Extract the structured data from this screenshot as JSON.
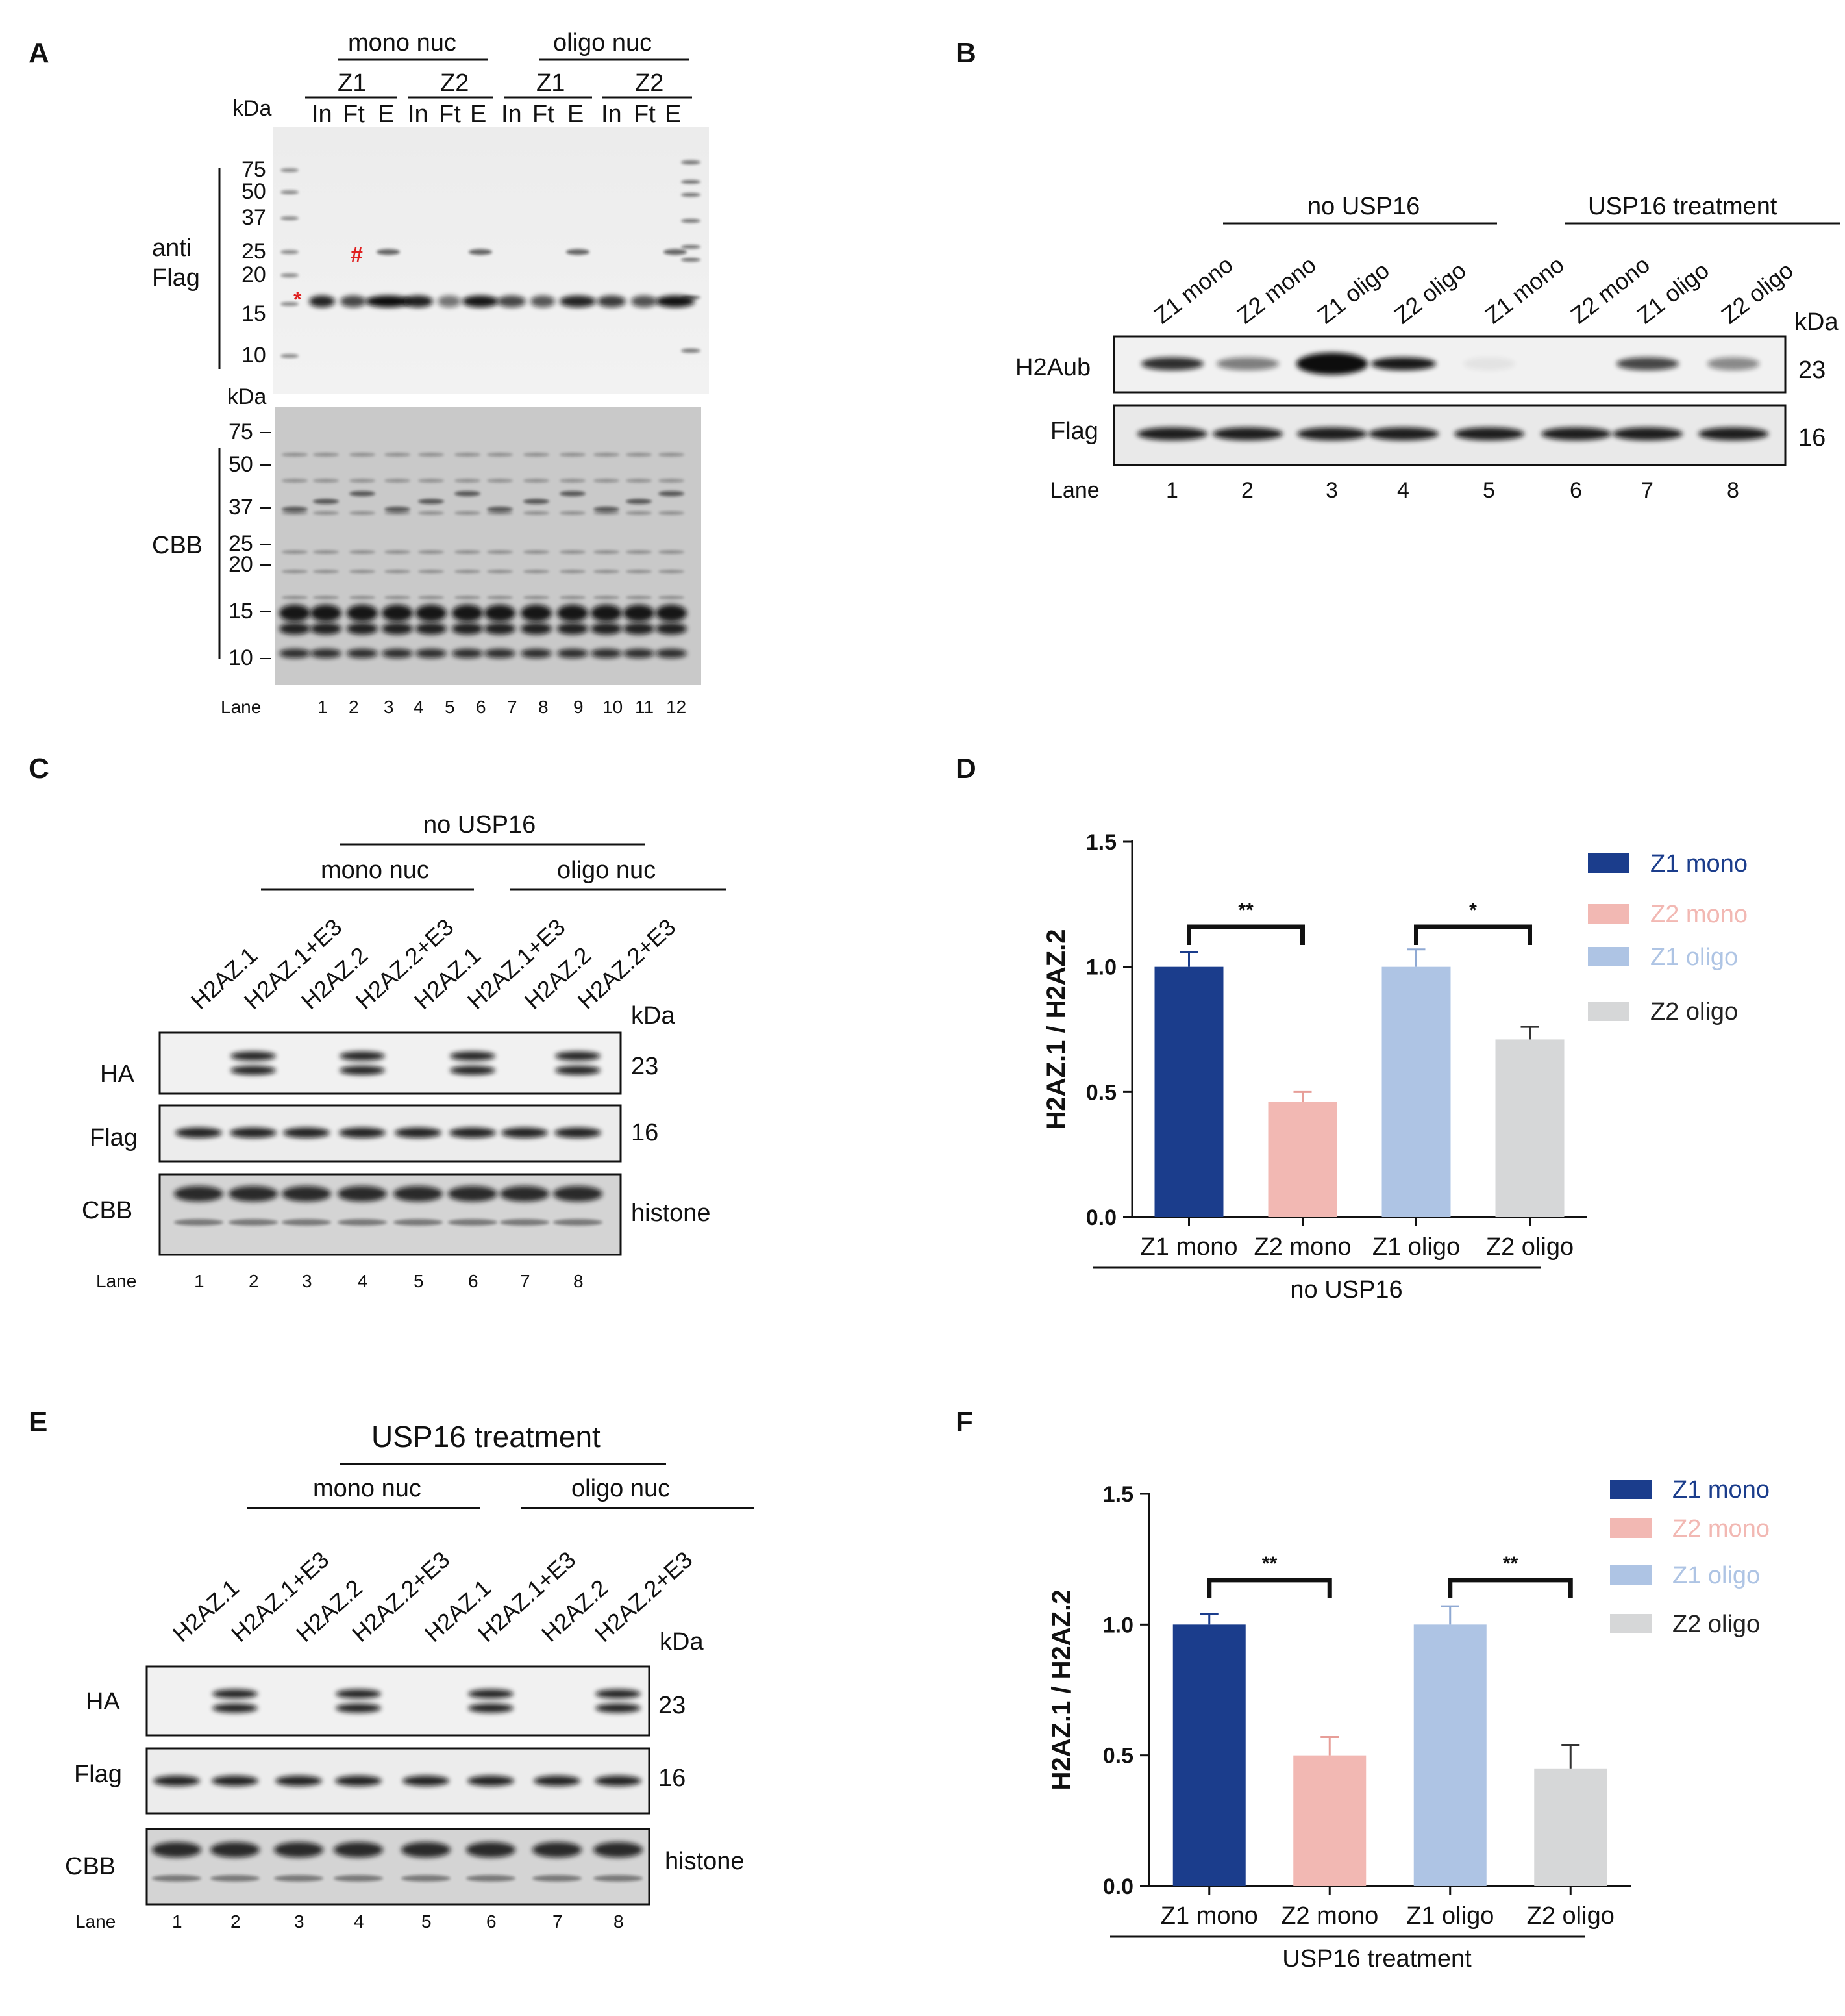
{
  "panels": {
    "A": {
      "letter": "A",
      "group_labels": [
        "mono nuc",
        "oligo nuc"
      ],
      "sub_groups": [
        "Z1",
        "Z2",
        "Z1",
        "Z2"
      ],
      "fractions": [
        "In",
        "Ft",
        "E",
        "In",
        "Ft",
        "E",
        "In",
        "Ft",
        "E",
        "In",
        "Ft",
        "E"
      ],
      "kda_label": "kDa",
      "top_markers": [
        "75",
        "50",
        "37",
        "25",
        "20",
        "15",
        "10"
      ],
      "bottom_markers": [
        "75",
        "50",
        "37",
        "25",
        "20",
        "15",
        "10"
      ],
      "top_side_label": [
        "anti",
        "Flag"
      ],
      "bottom_side_label": "CBB",
      "asterisk": "*",
      "hash": "#",
      "lane_label": "Lane",
      "lanes": [
        "1",
        "2",
        "3",
        "4",
        "5",
        "6",
        "7",
        "8",
        "9",
        "10",
        "11",
        "12"
      ]
    },
    "B": {
      "letter": "B",
      "header_left": "no USP16",
      "header_right": "USP16 treatment",
      "columns": [
        "Z1 mono",
        "Z2 mono",
        "Z1 oligo",
        "Z2 oligo",
        "Z1 mono",
        "Z2 mono",
        "Z1 oligo",
        "Z2 oligo"
      ],
      "kda_label": "kDa",
      "rows": [
        {
          "label": "H2Aub",
          "size": "23"
        },
        {
          "label": "Flag",
          "size": "16"
        }
      ],
      "lane_label": "Lane",
      "lanes": [
        "1",
        "2",
        "3",
        "4",
        "5",
        "6",
        "7",
        "8"
      ]
    },
    "C": {
      "letter": "C",
      "header": "no USP16",
      "sub_left": "mono nuc",
      "sub_right": "oligo nuc",
      "columns": [
        "H2AZ.1",
        "H2AZ.1+E3",
        "H2AZ.2",
        "H2AZ.2+E3",
        "H2AZ.1",
        "H2AZ.1+E3",
        "H2AZ.2",
        "H2AZ.2+E3"
      ],
      "kda_label": "kDa",
      "rows": [
        {
          "label": "HA",
          "size": "23"
        },
        {
          "label": "Flag",
          "size": "16"
        },
        {
          "label": "CBB",
          "size": "histone"
        }
      ],
      "lane_label": "Lane",
      "lanes": [
        "1",
        "2",
        "3",
        "4",
        "5",
        "6",
        "7",
        "8"
      ]
    },
    "E": {
      "letter": "E",
      "header": "USP16 treatment",
      "sub_left": "mono nuc",
      "sub_right": "oligo nuc",
      "columns": [
        "H2AZ.1",
        "H2AZ.1+E3",
        "H2AZ.2",
        "H2AZ.2+E3",
        "H2AZ.1",
        "H2AZ.1+E3",
        "H2AZ.2",
        "H2AZ.2+E3"
      ],
      "kda_label": "kDa",
      "rows": [
        {
          "label": "HA",
          "size": "23"
        },
        {
          "label": "Flag",
          "size": "16"
        },
        {
          "label": "CBB",
          "size": "histone"
        }
      ],
      "lane_label": "Lane",
      "lanes": [
        "1",
        "2",
        "3",
        "4",
        "5",
        "6",
        "7",
        "8"
      ]
    },
    "D": {
      "letter": "D",
      "group_label": "no USP16"
    },
    "F": {
      "letter": "F",
      "group_label": "USP16 treatment"
    }
  },
  "chart_data": [
    {
      "type": "bar",
      "panel": "D",
      "categories": [
        "Z1 mono",
        "Z2 mono",
        "Z1 oligo",
        "Z2 oligo"
      ],
      "values": [
        1.0,
        0.46,
        1.0,
        0.71
      ],
      "errors": [
        0.06,
        0.04,
        0.07,
        0.05
      ],
      "colors": [
        "#1b3d8c",
        "#f2b8b3",
        "#aec4e4",
        "#d6d7d8"
      ],
      "legend_colors": [
        "#1b3d8c",
        "#f2b8b3",
        "#aec4e4",
        "#d6d7d8"
      ],
      "legend_text_colors": [
        "#1b3d8c",
        "#f2b8b3",
        "#aec4e4",
        "#222222"
      ],
      "ylabel": "H2AZ.1 / H2AZ.2",
      "ylim": [
        0,
        1.5
      ],
      "yticks": [
        "0.0",
        "0.5",
        "1.0",
        "1.5"
      ],
      "ytick_values": [
        0,
        0.5,
        1.0,
        1.5
      ],
      "legend": [
        "Z1 mono",
        "Z2 mono",
        "Z1 oligo",
        "Z2 oligo"
      ],
      "significance": [
        {
          "from": 0,
          "to": 1,
          "label": "**",
          "level": 1.16
        },
        {
          "from": 2,
          "to": 3,
          "label": "*",
          "level": 1.16
        }
      ]
    },
    {
      "type": "bar",
      "panel": "F",
      "categories": [
        "Z1 mono",
        "Z2 mono",
        "Z1 oligo",
        "Z2 oligo"
      ],
      "values": [
        1.0,
        0.5,
        1.0,
        0.45
      ],
      "errors": [
        0.04,
        0.07,
        0.07,
        0.09
      ],
      "colors": [
        "#1b3d8c",
        "#f2b8b3",
        "#aec4e4",
        "#d6d7d8"
      ],
      "legend_colors": [
        "#1b3d8c",
        "#f2b8b3",
        "#aec4e4",
        "#d6d7d8"
      ],
      "legend_text_colors": [
        "#1b3d8c",
        "#f2b8b3",
        "#aec4e4",
        "#222222"
      ],
      "ylabel": "H2AZ.1 / H2AZ.2",
      "ylim": [
        0,
        1.5
      ],
      "yticks": [
        "0.0",
        "0.5",
        "1.0",
        "1.5"
      ],
      "ytick_values": [
        0,
        0.5,
        1.0,
        1.5
      ],
      "legend": [
        "Z1 mono",
        "Z2 mono",
        "Z1 oligo",
        "Z2 oligo"
      ],
      "significance": [
        {
          "from": 0,
          "to": 1,
          "label": "**",
          "level": 1.17
        },
        {
          "from": 2,
          "to": 3,
          "label": "**",
          "level": 1.17
        }
      ]
    }
  ]
}
